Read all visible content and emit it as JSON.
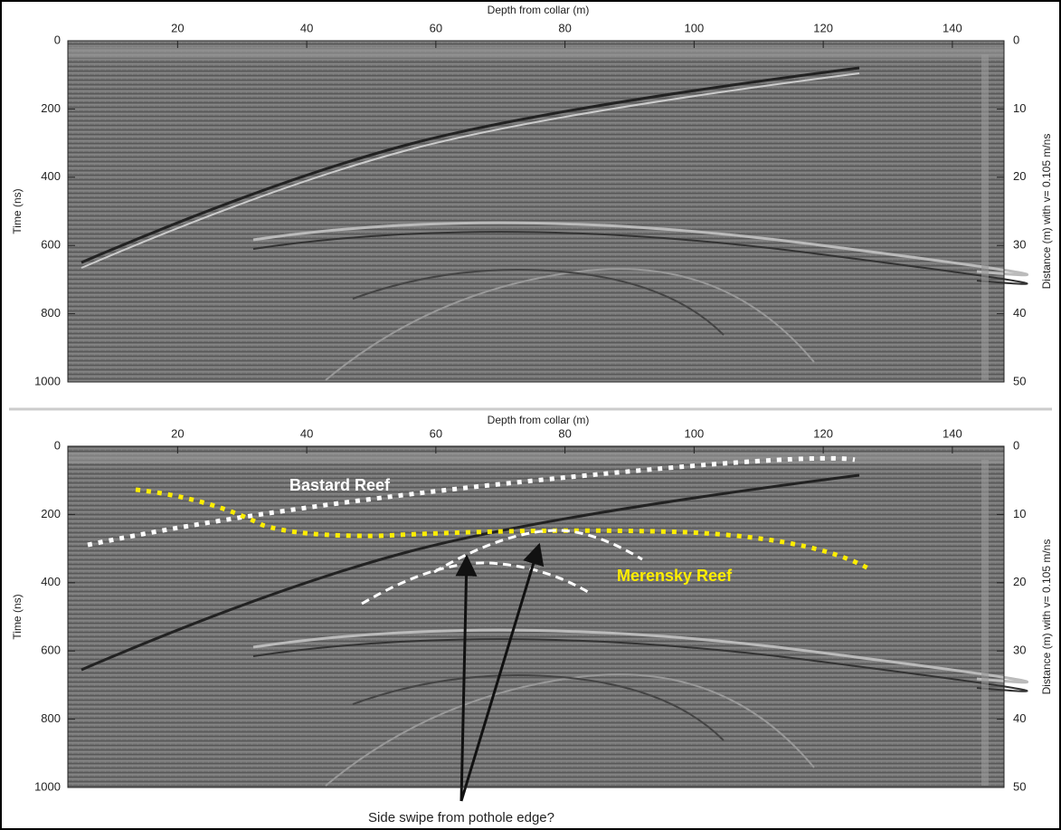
{
  "panels": [
    {
      "x_label": "Depth from collar (m)",
      "y_label": "Time (ns)",
      "y2_label": "Distance (m) with v= 0.105 m/ns",
      "xlim": [
        3,
        148
      ],
      "xticks": [
        20,
        40,
        60,
        80,
        100,
        120,
        140
      ],
      "ylim": [
        0,
        1000
      ],
      "yticks": [
        0,
        200,
        400,
        600,
        800,
        1000
      ],
      "y2lim": [
        0,
        50
      ],
      "y2ticks": [
        0,
        10,
        20,
        30,
        40,
        50
      ]
    },
    {
      "x_label": "Depth from collar (m)",
      "y_label": "Time (ns)",
      "y2_label": "Distance (m) with v= 0.105 m/ns",
      "xlim": [
        3,
        148
      ],
      "xticks": [
        20,
        40,
        60,
        80,
        100,
        120,
        140
      ],
      "ylim": [
        0,
        1000
      ],
      "yticks": [
        0,
        200,
        400,
        600,
        800,
        1000
      ],
      "y2lim": [
        0,
        50
      ],
      "y2ticks": [
        0,
        10,
        20,
        30,
        40,
        50
      ],
      "annotations": [
        "Bastard Reef",
        "Merensky Reef",
        "Side swipe from pothole edge?"
      ]
    }
  ]
}
